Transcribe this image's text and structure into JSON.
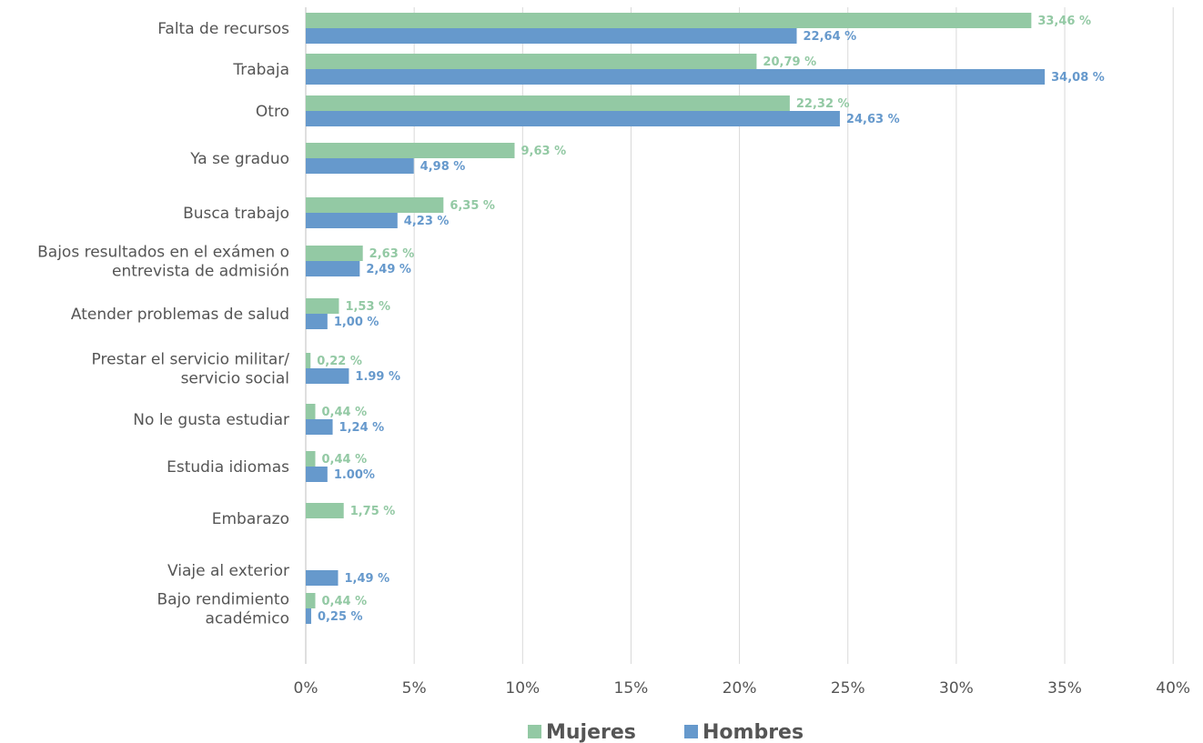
{
  "chart_data": {
    "type": "bar",
    "orientation": "horizontal",
    "categories": [
      [
        "Falta de recursos"
      ],
      [
        "Trabaja"
      ],
      [
        "Otro"
      ],
      [
        "Ya se graduo"
      ],
      [
        "Busca trabajo"
      ],
      [
        "Bajos resultados en el exámen o",
        "entrevista de admisión"
      ],
      [
        "Atender problemas de salud"
      ],
      [
        "Prestar el servicio militar/",
        "servicio social"
      ],
      [
        "No le gusta estudiar"
      ],
      [
        "Estudia idiomas"
      ],
      [
        "Embarazo"
      ],
      [
        "Viaje al exterior"
      ],
      [
        "Bajo rendimiento",
        "académico"
      ]
    ],
    "series": [
      {
        "name": "Mujeres",
        "color": "#93c9a4",
        "values": [
          33.46,
          20.79,
          22.32,
          9.63,
          6.35,
          2.63,
          1.53,
          0.22,
          0.44,
          0.44,
          1.75,
          null,
          0.44
        ],
        "labels": [
          "33,46 %",
          "20,79 %",
          "22,32 %",
          "9,63 %",
          "6,35 %",
          "2,63 %",
          "1,53 %",
          "0,22 %",
          "0,44 %",
          "0,44 %",
          "1,75 %",
          "",
          "0,44 %"
        ]
      },
      {
        "name": "Hombres",
        "color": "#6699cc",
        "values": [
          22.64,
          34.08,
          24.63,
          4.98,
          4.23,
          2.49,
          1.0,
          1.99,
          1.24,
          1.0,
          null,
          1.49,
          0.25
        ],
        "labels": [
          "22,64 %",
          "34,08 %",
          "24,63 %",
          "4,98 %",
          "4,23 %",
          "2,49 %",
          "1,00 %",
          "1.99 %",
          "1,24 %",
          "1.00%",
          "",
          "1,49 %",
          "0,25 %"
        ]
      }
    ],
    "xlim": [
      0,
      40
    ],
    "ticks": [
      0,
      5,
      10,
      15,
      20,
      25,
      30,
      35,
      40
    ],
    "tick_labels": [
      "0%",
      "5%",
      "10%",
      "15%",
      "20%",
      "25%",
      "30%",
      "35%",
      "40%"
    ],
    "grid": true,
    "legend_position": "bottom",
    "title": "",
    "xlabel": "",
    "ylabel": ""
  }
}
